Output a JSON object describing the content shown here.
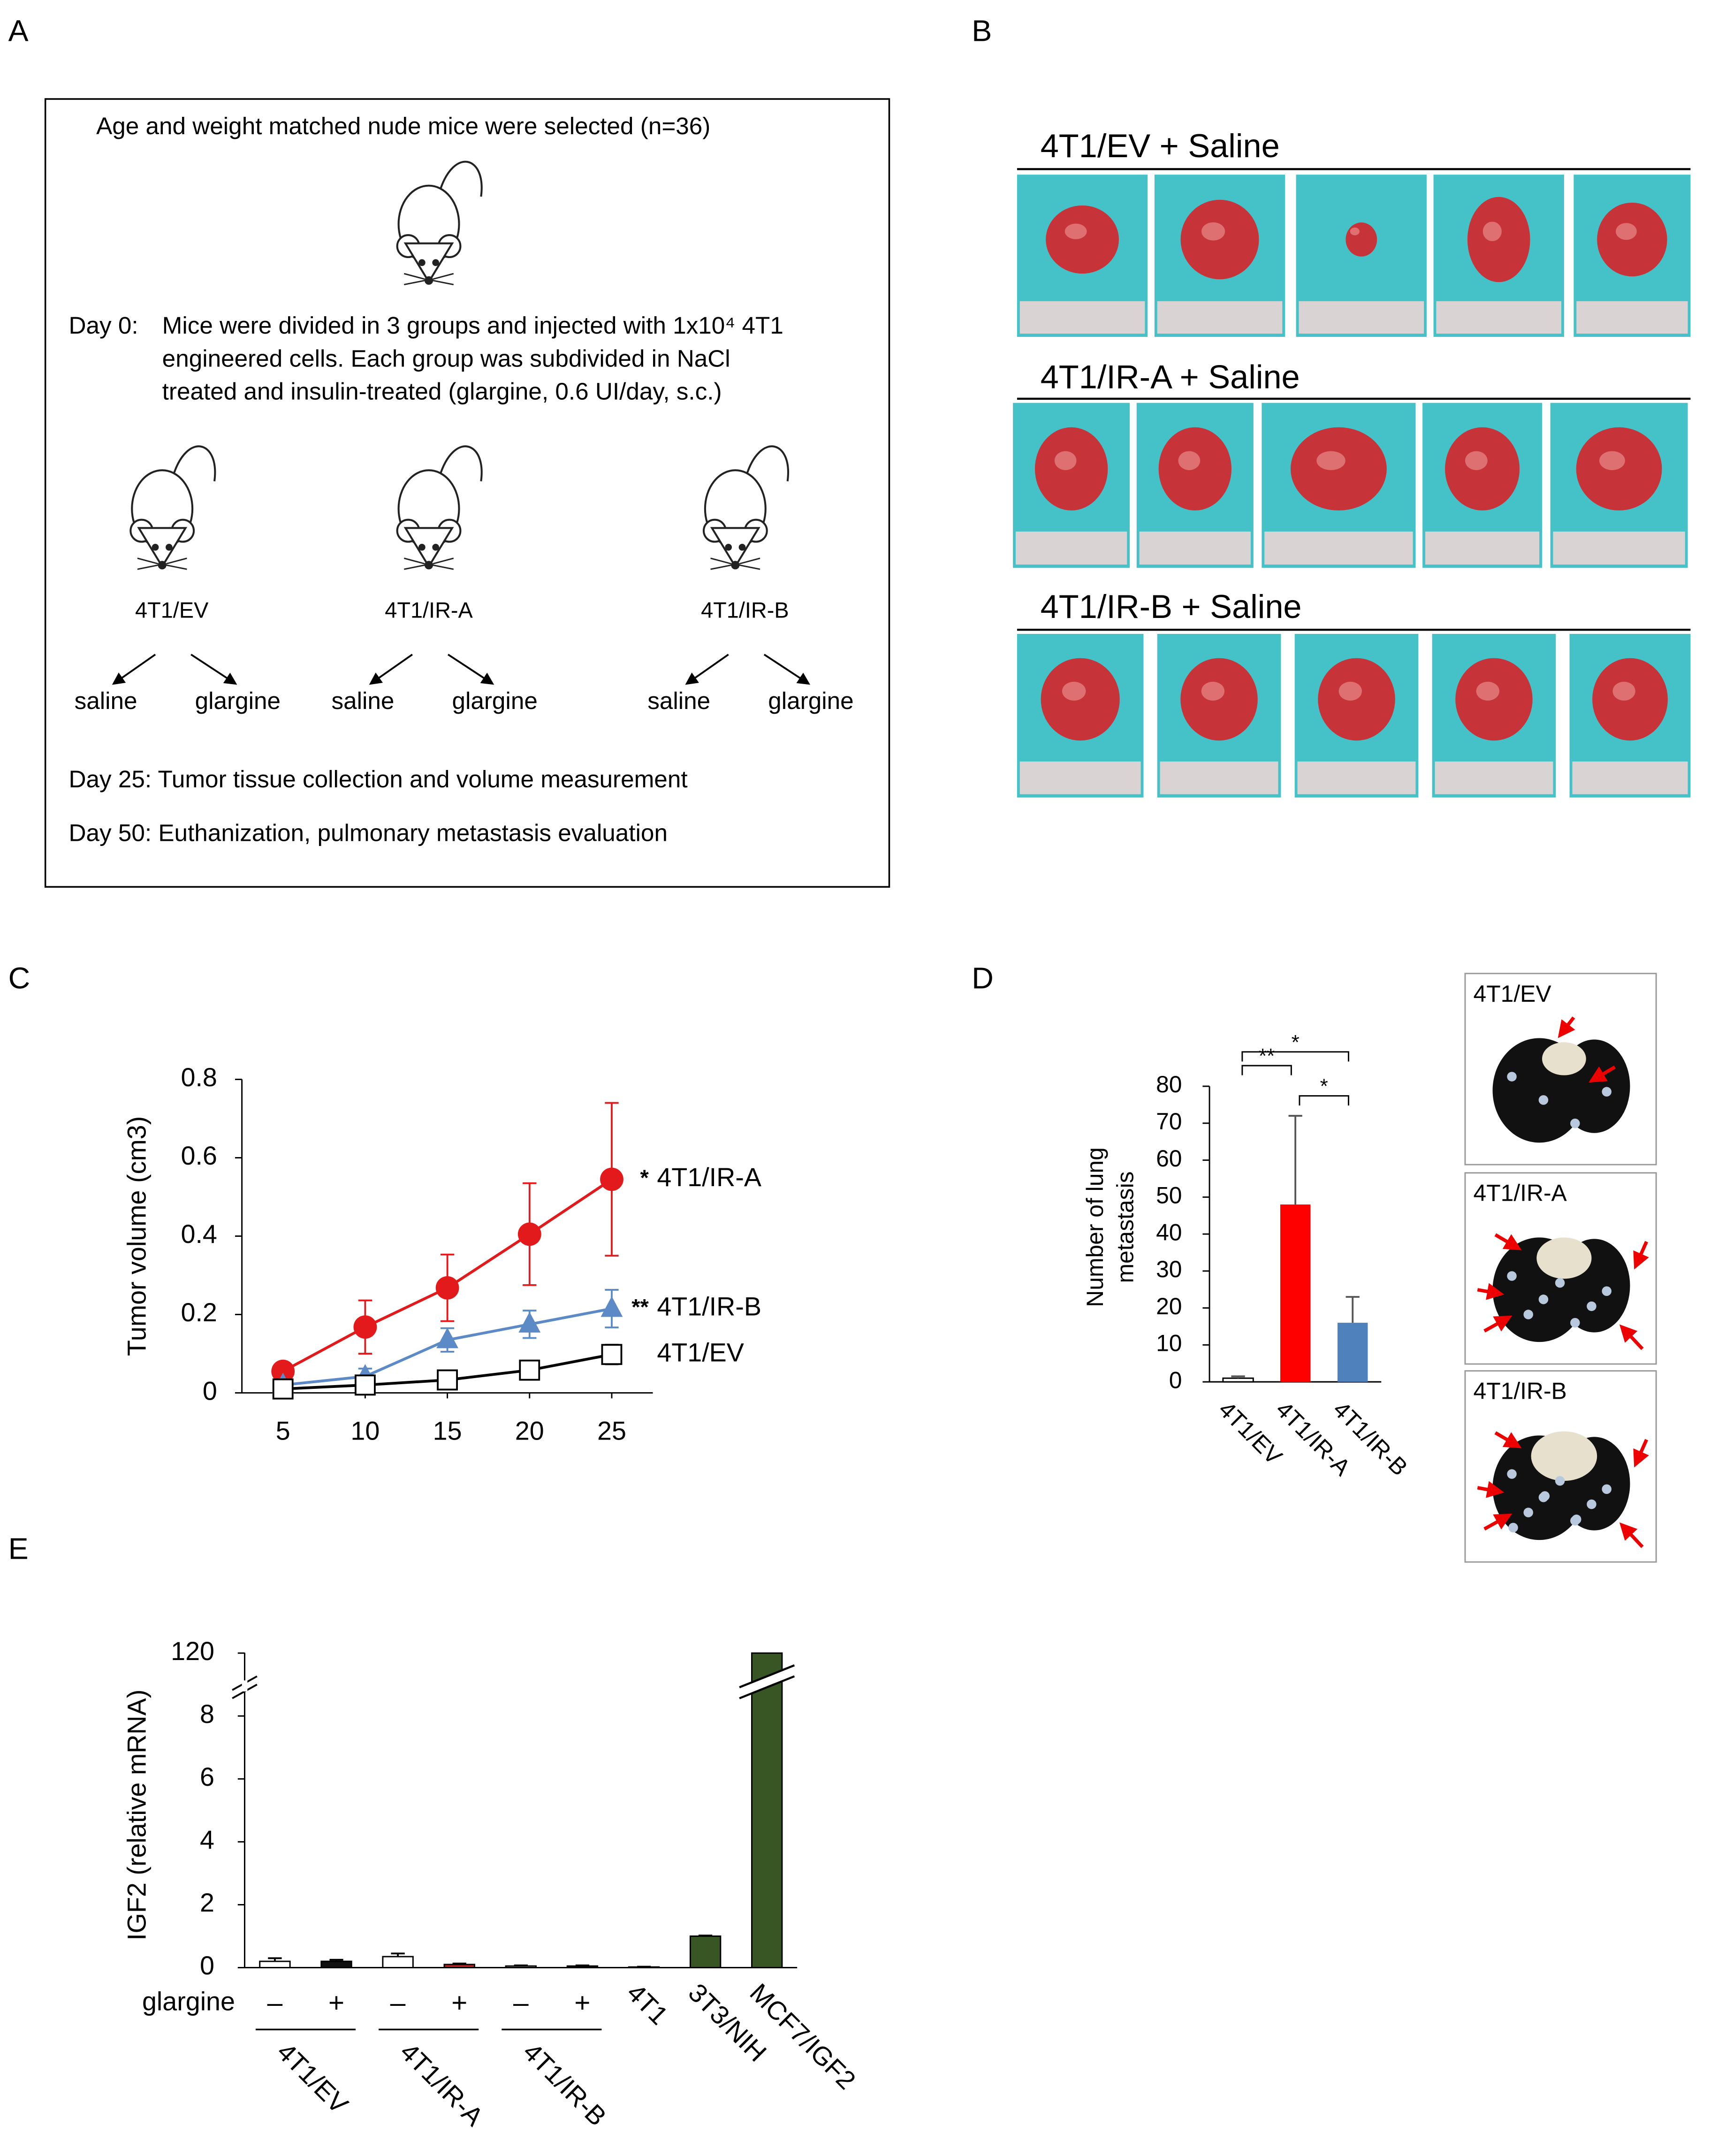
{
  "panels": [
    "A",
    "B",
    "C",
    "D",
    "E"
  ],
  "diagram": {
    "intro": "Age and weight matched nude mice were selected (n=36)",
    "day0_label": "Day 0:",
    "day0_lines": [
      "Mice were divided in 3 groups and injected with 1x10⁴ 4T1",
      "engineered cells. Each group was subdivided in NaCl",
      "treated and insulin-treated (glargine, 0.6 UI/day, s.c.)"
    ],
    "groups": [
      {
        "name": "4T1/EV",
        "color": "#000000"
      },
      {
        "name": "4T1/IR-A",
        "color": "#e3161b"
      },
      {
        "name": "4T1/IR-B",
        "color": "#3b4fc0"
      }
    ],
    "treatments": [
      "saline",
      "glargine"
    ],
    "day25": "Day 25: Tumor tissue collection and volume measurement",
    "day50": "Day 50: Euthanization, pulmonary metastasis evaluation"
  },
  "photos": {
    "rows": [
      "4T1/EV + Saline",
      "4T1/IR-A + Saline",
      "4T1/IR-B + Saline"
    ],
    "lungs": [
      "4T1/EV",
      "4T1/IR-A",
      "4T1/IR-B"
    ]
  },
  "chart_data": [
    {
      "type": "line",
      "ylabel": "Tumor volume (cm3)",
      "x": [
        5,
        10,
        15,
        20,
        25
      ],
      "xlim": [
        2.5,
        27.5
      ],
      "xticks": [
        5,
        10,
        15,
        20,
        25
      ],
      "ylim": [
        0,
        0.8
      ],
      "yticks": [
        0,
        0.2,
        0.4,
        0.6,
        0.8
      ],
      "series": [
        {
          "name": "4T1/IR-A",
          "color": "#e31a1c",
          "marker": "circle",
          "significance": "*",
          "values": [
            0.055,
            0.168,
            0.268,
            0.405,
            0.545
          ],
          "errors": [
            0.01,
            0.068,
            0.085,
            0.13,
            0.195
          ]
        },
        {
          "name": "4T1/IR-B",
          "color": "#5b8ac6",
          "marker": "triangle",
          "significance": "**",
          "values": [
            0.02,
            0.042,
            0.135,
            0.175,
            0.215
          ],
          "errors": [
            0.005,
            0.02,
            0.03,
            0.035,
            0.048
          ]
        },
        {
          "name": "4T1/EV",
          "color": "#000000",
          "marker": "square",
          "values": [
            0.01,
            0.02,
            0.033,
            0.058,
            0.098
          ],
          "errors": [
            0.003,
            0.005,
            0.008,
            0.01,
            0.025
          ]
        }
      ]
    },
    {
      "type": "bar",
      "ylabel": [
        "Number of lung",
        "metastasis"
      ],
      "categories": [
        "4T1/EV",
        "4T1/IR-A",
        "4T1/IR-B"
      ],
      "values": [
        1,
        48,
        16
      ],
      "errors": [
        0.5,
        24,
        7
      ],
      "colors": [
        "#ffffff",
        "#ff0000",
        "#4f81bd"
      ],
      "ylim": [
        0,
        80
      ],
      "yticks": [
        0,
        10,
        20,
        30,
        40,
        50,
        60,
        70,
        80
      ],
      "comparisons": [
        {
          "from": "4T1/EV",
          "to": "4T1/IR-B",
          "label": "*"
        },
        {
          "from": "4T1/EV",
          "to": "4T1/IR-A",
          "label": "**"
        },
        {
          "from": "4T1/IR-A",
          "to": "4T1/IR-B",
          "label": "*"
        }
      ]
    },
    {
      "type": "bar",
      "ylabel": "IGF2 (relative mRNA)",
      "categories": [
        null,
        null,
        null,
        null,
        null,
        null,
        "4T1",
        "3T3/NIH",
        "MCF7/IGF2"
      ],
      "glargine_label": "glargine",
      "glargine": [
        "–",
        "+",
        "–",
        "+",
        "–",
        "+",
        null,
        null,
        null
      ],
      "groups": [
        "4T1/EV",
        "4T1/IR-A",
        "4T1/IR-B"
      ],
      "values": [
        0.2,
        0.2,
        0.35,
        0.1,
        0.05,
        0.05,
        0.02,
        1,
        120
      ],
      "errors": [
        0.1,
        0.05,
        0.1,
        0.03,
        0.02,
        0.02,
        0.01,
        0.02,
        0
      ],
      "colors": [
        "#ffffff",
        "#111111",
        "#ffffff",
        "#c0201f",
        "#ffffff",
        "#111111",
        "#111111",
        "#375623",
        "#375623"
      ],
      "ylim": [
        0,
        120
      ],
      "ybreak": [
        9,
        119
      ],
      "yticks": [
        0,
        2,
        4,
        6,
        8,
        120
      ]
    }
  ]
}
